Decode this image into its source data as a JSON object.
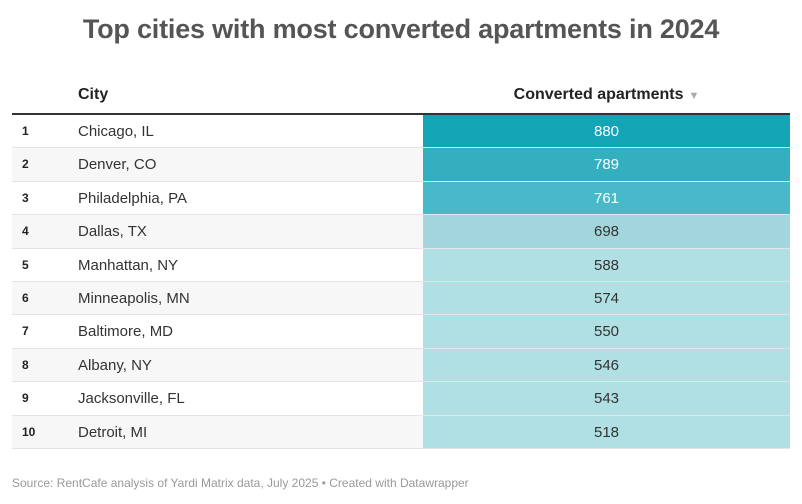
{
  "title": "Top cities with most converted apartments in 2024",
  "columns": {
    "city": "City",
    "value": "Converted apartments",
    "sort_icon": "triangle-down-icon"
  },
  "rows": [
    {
      "rank": "1",
      "city": "Chicago, IL",
      "value": "880",
      "color": "#13a5b5",
      "text_color": "#ffffff"
    },
    {
      "rank": "2",
      "city": "Denver, CO",
      "value": "789",
      "color": "#33afbf",
      "text_color": "#ffffff"
    },
    {
      "rank": "3",
      "city": "Philadelphia, PA",
      "value": "761",
      "color": "#47b9c8",
      "text_color": "#ffffff"
    },
    {
      "rank": "4",
      "city": "Dallas, TX",
      "value": "698",
      "color": "#a2d6dc",
      "text_color": "#333333"
    },
    {
      "rank": "5",
      "city": "Manhattan, NY",
      "value": "588",
      "color": "#b0e0e3",
      "text_color": "#333333"
    },
    {
      "rank": "6",
      "city": "Minneapolis, MN",
      "value": "574",
      "color": "#b0e0e3",
      "text_color": "#333333"
    },
    {
      "rank": "7",
      "city": "Baltimore, MD",
      "value": "550",
      "color": "#b0e0e3",
      "text_color": "#333333"
    },
    {
      "rank": "8",
      "city": "Albany, NY",
      "value": "546",
      "color": "#b0e0e3",
      "text_color": "#333333"
    },
    {
      "rank": "9",
      "city": "Jacksonville, FL",
      "value": "543",
      "color": "#b0e0e3",
      "text_color": "#333333"
    },
    {
      "rank": "10",
      "city": "Detroit, MI",
      "value": "518",
      "color": "#b0e0e3",
      "text_color": "#333333"
    }
  ],
  "footer": {
    "source": "Source: RentCafe analysis of Yardi Matrix data, July 2025",
    "separator": " • ",
    "credit": "Created with Datawrapper"
  }
}
